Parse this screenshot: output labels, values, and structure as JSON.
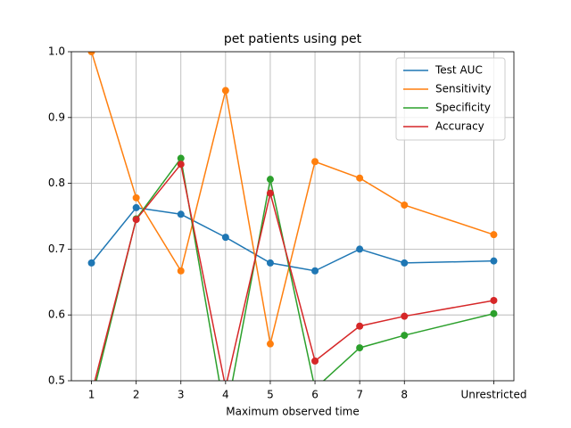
{
  "chart_data": {
    "type": "line",
    "title": "pet patients using pet",
    "x_label": "Maximum observed time",
    "x": [
      1,
      2,
      3,
      4,
      5,
      6,
      7,
      8,
      10
    ],
    "xlim": [
      0.55,
      10.45
    ],
    "xticks": [
      1,
      2,
      3,
      4,
      5,
      6,
      7,
      8,
      {
        "value": 10,
        "label": "Unrestricted"
      }
    ],
    "ylim": [
      0.5,
      1.0
    ],
    "yticks": [
      {
        "value": 0.5,
        "label": "0.5"
      },
      0.6,
      0.7,
      0.8,
      0.9,
      {
        "value": 1.0,
        "label": "1.0"
      }
    ],
    "grid": true,
    "legend": "upper right",
    "series": [
      {
        "name": "Test AUC",
        "color": "#1f77b4",
        "values": [
          0.679,
          0.763,
          0.753,
          0.718,
          0.679,
          0.667,
          0.7,
          0.679,
          0.682
        ]
      },
      {
        "name": "Sensitivity",
        "color": "#ff7f0e",
        "values": [
          1.0,
          0.778,
          0.667,
          0.941,
          0.556,
          0.833,
          0.808,
          0.767,
          0.722
        ]
      },
      {
        "name": "Specificity",
        "color": "#2ca02c",
        "values": [
          0.47,
          0.746,
          0.838,
          0.444,
          0.806,
          0.488,
          0.55,
          0.569,
          0.602
        ]
      },
      {
        "name": "Accuracy",
        "color": "#d62728",
        "values": [
          0.48,
          0.745,
          0.829,
          0.49,
          0.785,
          0.53,
          0.583,
          0.598,
          0.622
        ]
      }
    ]
  }
}
